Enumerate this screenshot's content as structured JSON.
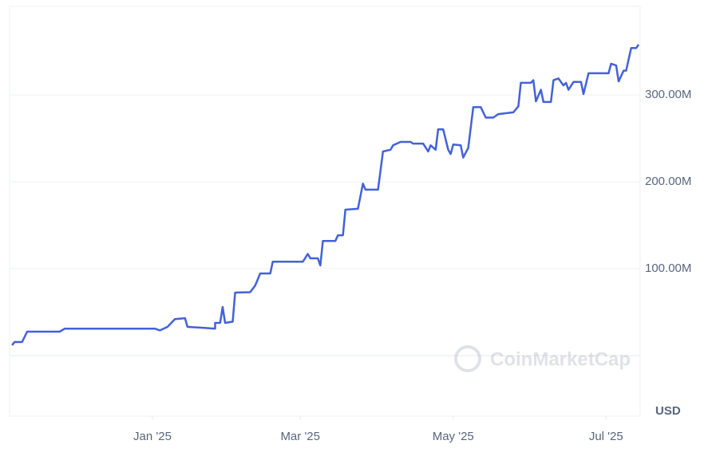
{
  "chart_data": {
    "type": "line",
    "x": [
      -56,
      -55,
      -52,
      -50,
      -37,
      -35,
      1,
      3,
      6,
      9,
      13,
      14,
      20,
      25,
      25,
      27,
      28,
      29,
      32,
      33,
      39,
      41,
      43,
      47,
      48,
      60,
      62,
      63,
      66,
      67,
      68,
      73,
      74,
      76,
      77,
      82,
      84,
      85,
      90,
      92,
      95,
      96,
      99,
      103,
      104,
      108,
      110,
      111,
      113,
      114,
      116,
      118,
      119,
      120,
      123,
      124,
      126,
      128,
      131,
      133,
      136,
      138,
      144,
      146,
      147,
      151,
      152,
      153,
      155,
      156,
      159,
      160,
      162,
      164,
      165,
      166,
      168,
      171,
      172,
      174,
      182,
      183,
      185,
      186,
      188,
      189,
      191,
      193,
      194
    ],
    "series": [
      {
        "color": "#4361d9",
        "values": [
          12,
          15.6,
          15.6,
          27.5,
          27.5,
          31,
          31,
          29,
          33,
          42,
          43,
          33,
          32,
          31,
          37.6,
          37.6,
          56,
          37.6,
          39,
          72.5,
          73,
          80.7,
          94.5,
          94.5,
          108,
          108,
          117,
          112,
          112,
          103.7,
          132,
          132,
          138.5,
          138.5,
          168,
          169,
          198,
          191,
          191,
          235,
          237,
          242,
          246,
          246,
          244,
          244,
          235,
          242,
          237,
          260.5,
          260.5,
          237,
          232,
          243,
          242,
          228,
          239,
          286,
          286,
          274,
          274,
          278,
          280,
          287,
          314,
          314,
          317,
          292.7,
          306,
          292,
          292,
          317,
          319,
          311,
          314,
          306,
          315,
          315,
          301,
          325,
          325,
          336,
          334,
          315.6,
          328,
          328,
          354,
          354,
          358
        ]
      }
    ],
    "xlim": [
      -57,
      194.6
    ],
    "xticks": [
      {
        "value": 0,
        "label": "Jan '25"
      },
      {
        "value": 59,
        "label": "Mar '25"
      },
      {
        "value": 120,
        "label": "May '25"
      },
      {
        "value": 181,
        "label": "Jul '25"
      }
    ],
    "ylim": [
      0,
      402
    ],
    "yticks": [
      {
        "value": 100,
        "label": "100.00M"
      },
      {
        "value": 200,
        "label": "200.00M"
      },
      {
        "value": 300,
        "label": "300.00M"
      }
    ],
    "grid": true,
    "currency_label": "USD",
    "watermark": "CoinMarketCap"
  }
}
